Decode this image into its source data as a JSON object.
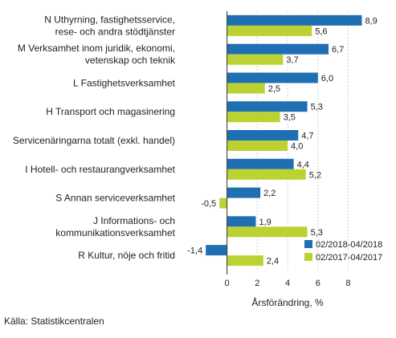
{
  "chart_data": {
    "type": "bar",
    "orientation": "horizontal",
    "categories": [
      [
        "N Uthyrning, fastighetsservice,",
        "rese- och andra stödtjänster"
      ],
      [
        "M Verksamhet inom juridik, ekonomi,",
        "vetenskap och teknik"
      ],
      [
        "L Fastighetsverksamhet"
      ],
      [
        "H Transport och magasinering"
      ],
      [
        "Servicenäringarna totalt (exkl. handel)"
      ],
      [
        "I Hotell- och restaurangverksamhet"
      ],
      [
        "S Annan serviceverksamhet"
      ],
      [
        "J Informations- och",
        "kommunikationsverksamhet"
      ],
      [
        "R Kultur, nöje och fritid"
      ]
    ],
    "series": [
      {
        "name": "02/2018-04/2018",
        "color": "#1f6fb2",
        "values": [
          8.9,
          6.7,
          6.0,
          5.3,
          4.7,
          4.4,
          2.2,
          1.9,
          -1.4
        ],
        "labels": [
          "8,9",
          "6,7",
          "6,0",
          "5,3",
          "4,7",
          "4,4",
          "2,2",
          "1,9",
          "-1,4"
        ]
      },
      {
        "name": "02/2017-04/2017",
        "color": "#bcd232",
        "values": [
          5.6,
          3.7,
          2.5,
          3.5,
          4.0,
          5.2,
          -0.5,
          5.3,
          2.4
        ],
        "labels": [
          "5,6",
          "3,7",
          "2,5",
          "3,5",
          "4,0",
          "5,2",
          "-0,5",
          "5,3",
          "2,4"
        ]
      }
    ],
    "xlabel": "Årsförändring, %",
    "xlim": [
      -2.1,
      10.2
    ],
    "ticks": [
      0,
      2,
      4,
      6,
      8
    ],
    "tick_labels": [
      "0",
      "2",
      "4",
      "6",
      "8"
    ],
    "grid": true,
    "legend_position": "bottom-right",
    "source": "Källa: Statistikcentralen"
  }
}
